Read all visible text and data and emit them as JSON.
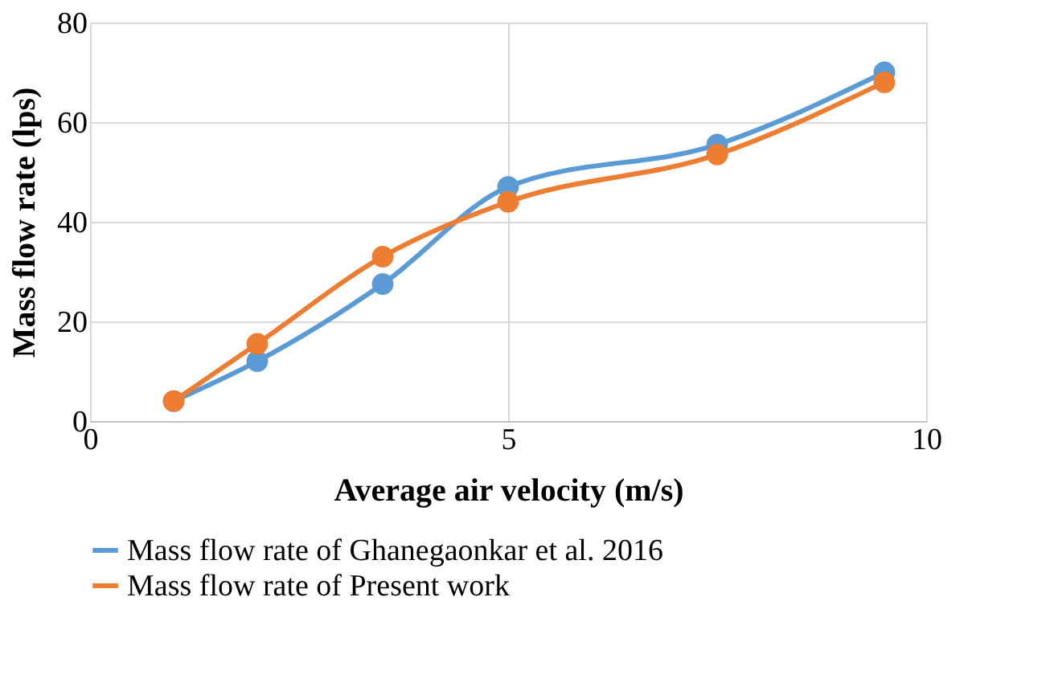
{
  "chart_data": {
    "type": "line",
    "xlabel": "Average air velocity (m/s)",
    "ylabel": "Mass flow rate (lps)",
    "xlim": [
      0,
      10
    ],
    "xticks": [
      0,
      5,
      10
    ],
    "ylim": [
      0,
      80
    ],
    "yticks": [
      0,
      20,
      40,
      60,
      80
    ],
    "grid": true,
    "legend": "bottom",
    "marker": "circle",
    "line_style": "solid",
    "series": [
      {
        "name": "Mass flow rate of  Ghanegaonkar et al. 2016",
        "color": "#5b9bd5",
        "x": [
          1,
          2,
          3.5,
          5,
          7.5,
          9.5
        ],
        "values": [
          4,
          12,
          27.5,
          47,
          55.5,
          70
        ]
      },
      {
        "name": "Mass flow rate of  Present work",
        "color": "#ed7d31",
        "x": [
          1,
          2,
          3.5,
          5,
          7.5,
          9.5
        ],
        "values": [
          4,
          15.5,
          33,
          44,
          53.5,
          68
        ]
      }
    ]
  }
}
